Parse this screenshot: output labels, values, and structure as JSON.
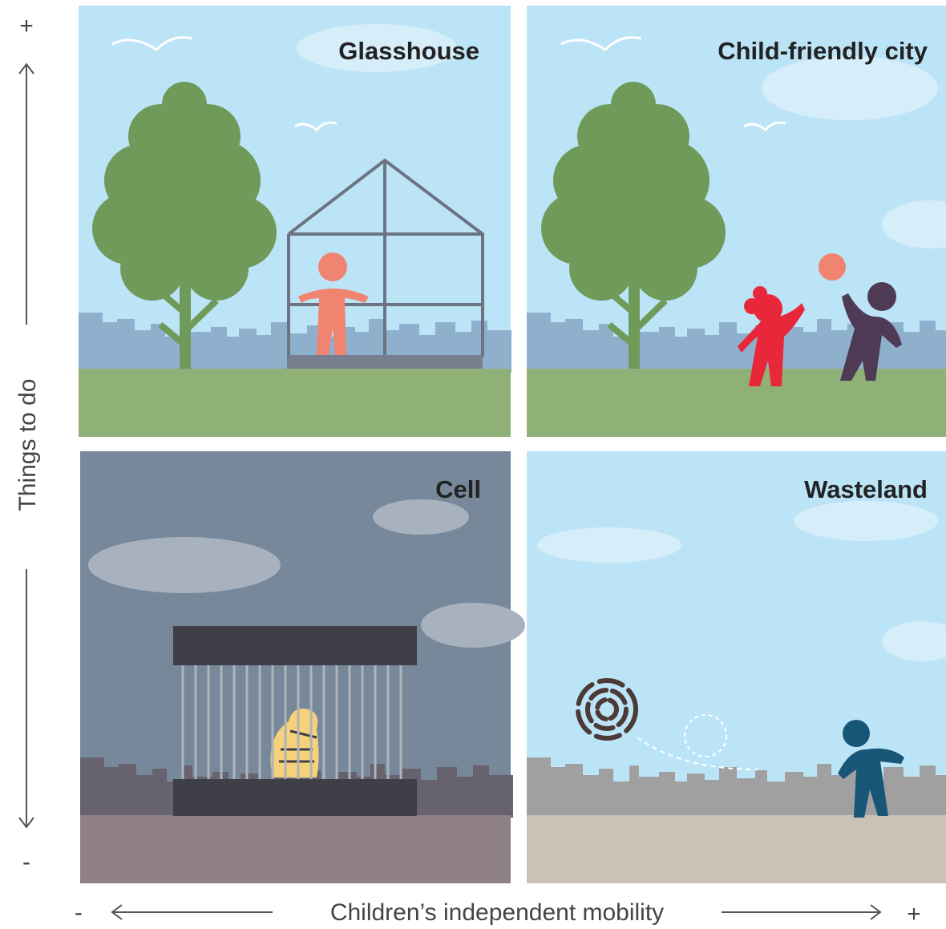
{
  "y_axis": {
    "label": "Things to do",
    "high": "+",
    "low": "-"
  },
  "x_axis": {
    "label": "Children’s independent mobility",
    "low": "-",
    "high": "+"
  },
  "quadrants": [
    {
      "title": "Glasshouse"
    },
    {
      "title": "Child-friendly city"
    },
    {
      "title": "Cell"
    },
    {
      "title": "Wasteland"
    }
  ]
}
